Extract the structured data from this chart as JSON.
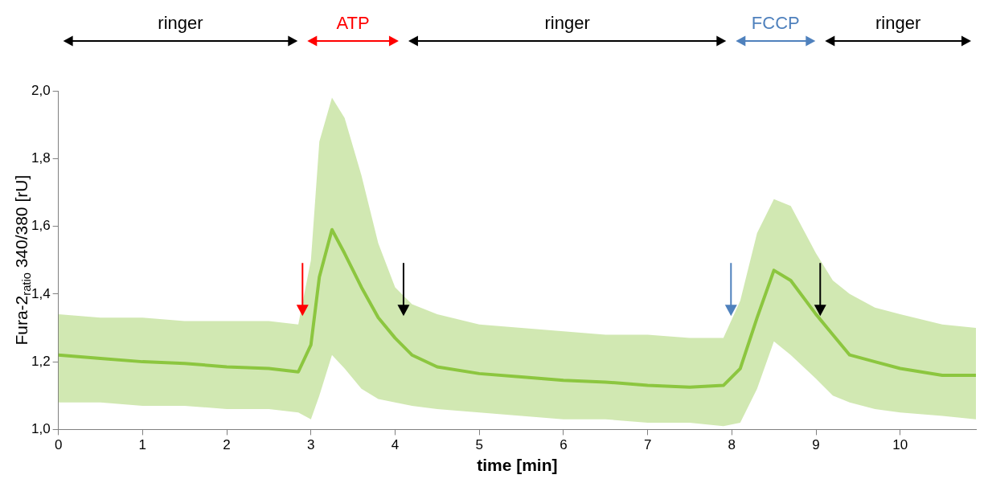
{
  "chart_data": {
    "type": "line",
    "xlabel": "time [min]",
    "ylabel": "Fura-2$_{ratio}$ 340/380 [rU]",
    "xlim": [
      0,
      10.9
    ],
    "xticks": [
      0,
      1,
      2,
      3,
      4,
      5,
      6,
      7,
      8,
      9,
      10
    ],
    "ylim": [
      1.0,
      2.0
    ],
    "yticks": [
      {
        "value": 1.0,
        "label": "1,0"
      },
      {
        "value": 1.2,
        "label": "1,2"
      },
      {
        "value": 1.4,
        "label": "1,4"
      },
      {
        "value": 1.6,
        "label": "1,6"
      },
      {
        "value": 1.8,
        "label": "1,8"
      },
      {
        "value": 2.0,
        "label": "2,0"
      }
    ],
    "grid": false,
    "legend": false,
    "marker": "none",
    "line_style": "solid",
    "series": [
      {
        "color": "#8cc63f",
        "x": [
          0,
          0.5,
          1,
          1.5,
          2,
          2.5,
          2.85,
          3.0,
          3.1,
          3.25,
          3.4,
          3.6,
          3.8,
          4.0,
          4.2,
          4.5,
          5,
          5.5,
          6,
          6.5,
          7,
          7.5,
          7.9,
          8.1,
          8.3,
          8.5,
          8.7,
          9.0,
          9.2,
          9.4,
          9.7,
          10,
          10.5,
          10.9
        ],
        "values": [
          1.22,
          1.21,
          1.2,
          1.195,
          1.185,
          1.18,
          1.17,
          1.25,
          1.45,
          1.59,
          1.52,
          1.42,
          1.33,
          1.27,
          1.22,
          1.185,
          1.165,
          1.155,
          1.145,
          1.14,
          1.13,
          1.125,
          1.13,
          1.18,
          1.33,
          1.47,
          1.44,
          1.34,
          1.28,
          1.22,
          1.2,
          1.18,
          1.16,
          1.16
        ],
        "upper": [
          1.34,
          1.33,
          1.33,
          1.32,
          1.32,
          1.32,
          1.31,
          1.5,
          1.85,
          1.98,
          1.92,
          1.75,
          1.55,
          1.42,
          1.37,
          1.34,
          1.31,
          1.3,
          1.29,
          1.28,
          1.28,
          1.27,
          1.27,
          1.38,
          1.58,
          1.68,
          1.66,
          1.52,
          1.44,
          1.4,
          1.36,
          1.34,
          1.31,
          1.3
        ],
        "lower": [
          1.08,
          1.08,
          1.07,
          1.07,
          1.06,
          1.06,
          1.05,
          1.03,
          1.1,
          1.22,
          1.18,
          1.12,
          1.09,
          1.08,
          1.07,
          1.06,
          1.05,
          1.04,
          1.03,
          1.03,
          1.02,
          1.02,
          1.01,
          1.02,
          1.12,
          1.26,
          1.22,
          1.15,
          1.1,
          1.08,
          1.06,
          1.05,
          1.04,
          1.03
        ]
      }
    ],
    "annotations": [
      "ringer",
      "ATP",
      "ringer",
      "FCCP",
      "ringer"
    ],
    "ref_lines": [
      {
        "axis": "x",
        "value": 2.9,
        "color": "#ff0000",
        "line_style": "solid"
      },
      {
        "axis": "x",
        "value": 4.1,
        "color": "#000000",
        "line_style": "solid"
      },
      {
        "axis": "x",
        "value": 7.99,
        "color": "#4f81bd",
        "line_style": "solid"
      },
      {
        "axis": "x",
        "value": 9.05,
        "color": "#000000",
        "line_style": "solid"
      }
    ]
  }
}
